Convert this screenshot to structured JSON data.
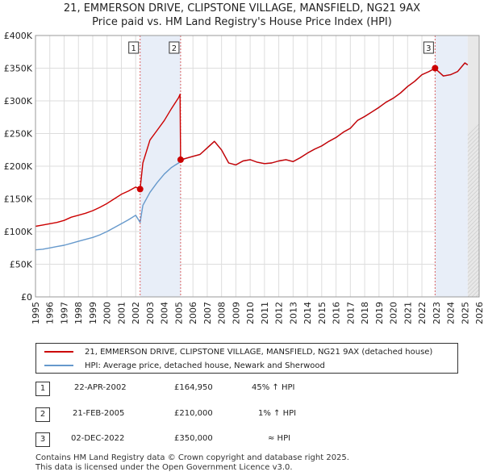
{
  "title_line1": "21, EMMERSON DRIVE, CLIPSTONE VILLAGE, MANSFIELD, NG21 9AX",
  "title_line2": "Price paid vs. HM Land Registry's House Price Index (HPI)",
  "colors": {
    "price": "#cc0000",
    "hpi": "#6699cc",
    "grid": "#dddddd",
    "shade": "#e8eef8",
    "future": "#e8e8e8"
  },
  "chart_data": {
    "type": "line",
    "title": "21, EMMERSON DRIVE, CLIPSTONE VILLAGE, MANSFIELD, NG21 9AX — Price paid vs. HM Land Registry's House Price Index (HPI)",
    "xlabel": "",
    "ylabel": "",
    "xlim": [
      1995,
      2026
    ],
    "ylim": [
      0,
      400000
    ],
    "x_ticks": [
      1995,
      1996,
      1997,
      1998,
      1999,
      2000,
      2001,
      2002,
      2003,
      2004,
      2005,
      2006,
      2007,
      2008,
      2009,
      2010,
      2011,
      2012,
      2013,
      2014,
      2015,
      2016,
      2017,
      2018,
      2019,
      2020,
      2021,
      2022,
      2023,
      2024,
      2025,
      2026
    ],
    "y_ticks": [
      0,
      50000,
      100000,
      150000,
      200000,
      250000,
      300000,
      350000,
      400000
    ],
    "y_tick_labels": [
      "£0",
      "£50K",
      "£100K",
      "£150K",
      "£200K",
      "£250K",
      "£300K",
      "£350K",
      "£400K"
    ],
    "series": [
      {
        "name": "21, EMMERSON DRIVE, CLIPSTONE VILLAGE, MANSFIELD, NG21 9AX (detached house)",
        "color": "#cc0000",
        "x": [
          1995.0,
          1995.5,
          1996.0,
          1996.5,
          1997.0,
          1997.5,
          1998.0,
          1998.5,
          1999.0,
          1999.5,
          2000.0,
          2000.5,
          2001.0,
          2001.5,
          2002.0,
          2002.31,
          2002.5,
          2003.0,
          2003.5,
          2004.0,
          2004.5,
          2005.0,
          2005.1,
          2005.14,
          2005.5,
          2006.0,
          2006.5,
          2007.0,
          2007.5,
          2008.0,
          2008.5,
          2009.0,
          2009.5,
          2010.0,
          2010.5,
          2011.0,
          2011.5,
          2012.0,
          2012.5,
          2013.0,
          2013.5,
          2014.0,
          2014.5,
          2015.0,
          2015.5,
          2016.0,
          2016.5,
          2017.0,
          2017.5,
          2018.0,
          2018.5,
          2019.0,
          2019.5,
          2020.0,
          2020.5,
          2021.0,
          2021.5,
          2022.0,
          2022.5,
          2022.92,
          2023.0,
          2023.5,
          2024.0,
          2024.5,
          2025.0,
          2025.2
        ],
        "y": [
          108000,
          110000,
          112000,
          114000,
          117000,
          122000,
          125000,
          128000,
          132000,
          137000,
          143000,
          150000,
          157000,
          162000,
          168000,
          164950,
          205000,
          240000,
          255000,
          270000,
          288000,
          305000,
          310000,
          210000,
          212000,
          215000,
          218000,
          228000,
          238000,
          225000,
          205000,
          202000,
          208000,
          210000,
          206000,
          204000,
          205000,
          208000,
          210000,
          207000,
          213000,
          220000,
          226000,
          231000,
          238000,
          244000,
          252000,
          258000,
          270000,
          276000,
          283000,
          290000,
          298000,
          304000,
          312000,
          322000,
          330000,
          340000,
          345000,
          350000,
          348000,
          338000,
          340000,
          345000,
          358000,
          355000
        ]
      },
      {
        "name": "HPI: Average price, detached house, Newark and Sherwood",
        "color": "#6699cc",
        "x": [
          1995.0,
          1995.5,
          1996.0,
          1996.5,
          1997.0,
          1997.5,
          1998.0,
          1998.5,
          1999.0,
          1999.5,
          2000.0,
          2000.5,
          2001.0,
          2001.5,
          2002.0,
          2002.31,
          2002.5,
          2003.0,
          2003.5,
          2004.0,
          2004.5,
          2005.0,
          2005.14,
          2005.5,
          2006.0,
          2006.5,
          2007.0,
          2007.5,
          2008.0,
          2008.5,
          2009.0,
          2009.5,
          2010.0,
          2010.5,
          2011.0,
          2011.5,
          2012.0,
          2012.5,
          2013.0,
          2013.5,
          2014.0,
          2014.5,
          2015.0,
          2015.5,
          2016.0,
          2016.5,
          2017.0,
          2017.5,
          2018.0,
          2018.5,
          2019.0,
          2019.5,
          2020.0,
          2020.5,
          2021.0,
          2021.5,
          2022.0,
          2022.5,
          2022.92,
          2023.0,
          2023.5,
          2024.0,
          2024.5,
          2025.0,
          2025.2
        ],
        "y": [
          72000,
          73000,
          75000,
          77000,
          79000,
          82000,
          85000,
          88000,
          91000,
          95000,
          100000,
          106000,
          112000,
          118000,
          125000,
          114000,
          140000,
          160000,
          175000,
          188000,
          198000,
          205000,
          208000,
          212000,
          215000,
          218000,
          228000,
          238000,
          225000,
          205000,
          202000,
          208000,
          210000,
          206000,
          204000,
          205000,
          208000,
          210000,
          207000,
          213000,
          220000,
          226000,
          231000,
          238000,
          244000,
          252000,
          258000,
          270000,
          276000,
          283000,
          290000,
          298000,
          304000,
          312000,
          322000,
          330000,
          340000,
          345000,
          350000,
          348000,
          338000,
          340000,
          345000,
          358000,
          355000
        ]
      }
    ],
    "annotations": [
      {
        "label": "1",
        "x": 2002.31,
        "y": 164950
      },
      {
        "label": "2",
        "x": 2005.14,
        "y": 210000
      },
      {
        "label": "3",
        "x": 2022.92,
        "y": 350000
      }
    ],
    "shaded_spans": [
      [
        2002.31,
        2005.14
      ],
      [
        2022.92,
        2025.2
      ]
    ],
    "future_start": 2025.2
  },
  "legend": {
    "price_label": "21, EMMERSON DRIVE, CLIPSTONE VILLAGE, MANSFIELD, NG21 9AX (detached house)",
    "hpi_label": "HPI: Average price, detached house, Newark and Sherwood"
  },
  "transactions": [
    {
      "num": "1",
      "date": "22-APR-2002",
      "price": "£164,950",
      "hpi": "45% ↑ HPI"
    },
    {
      "num": "2",
      "date": "21-FEB-2005",
      "price": "£210,000",
      "hpi": "1% ↑ HPI"
    },
    {
      "num": "3",
      "date": "02-DEC-2022",
      "price": "£350,000",
      "hpi": "≈ HPI"
    }
  ],
  "footer": {
    "line1": "Contains HM Land Registry data © Crown copyright and database right 2025.",
    "line2": "This data is licensed under the Open Government Licence v3.0."
  }
}
